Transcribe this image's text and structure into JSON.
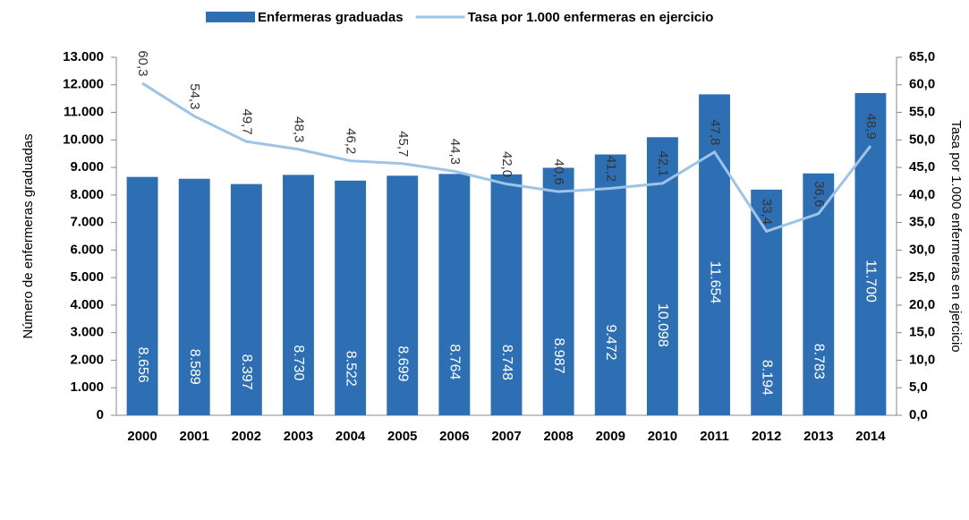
{
  "chart_data": {
    "type": "bar",
    "categories": [
      "2000",
      "2001",
      "2002",
      "2003",
      "2004",
      "2005",
      "2006",
      "2007",
      "2008",
      "2009",
      "2010",
      "2011",
      "2012",
      "2013",
      "2014"
    ],
    "series": [
      {
        "name": "Enfermeras graduadas",
        "type": "bar",
        "color": "#2e6fb4",
        "values": [
          8656,
          8589,
          8397,
          8730,
          8522,
          8699,
          8764,
          8748,
          8987,
          9472,
          10098,
          11654,
          8194,
          8783,
          11700
        ],
        "value_labels": [
          "8.656",
          "8.589",
          "8.397",
          "8.730",
          "8.522",
          "8.699",
          "8.764",
          "8.748",
          "8.987",
          "9.472",
          "10.098",
          "11.654",
          "8.194",
          "8.783",
          "11.700"
        ]
      },
      {
        "name": "Tasa por 1.000 enfermeras en ejercicio",
        "type": "line",
        "axis": "y2",
        "color": "#9dc3e6",
        "values": [
          60.3,
          54.3,
          49.7,
          48.3,
          46.2,
          45.7,
          44.3,
          42.0,
          40.6,
          41.2,
          42.1,
          47.8,
          33.4,
          36.6,
          48.9
        ],
        "value_labels": [
          "60,3",
          "54,3",
          "49,7",
          "48,3",
          "46,2",
          "45,7",
          "44,3",
          "42,0",
          "40,6",
          "41,2",
          "42,1",
          "47,8",
          "33,4",
          "36,6",
          "48,9"
        ]
      }
    ],
    "ylabel": "Número de enfermeras graduadas",
    "y2label": "Tasa por 1.000 enfermeras en ejercicio",
    "ylim": [
      0,
      13000
    ],
    "yticks": [
      0,
      {
        "value": 1000,
        "label": "1.000"
      },
      {
        "value": 2000,
        "label": "2.000"
      },
      {
        "value": 3000,
        "label": "3.000"
      },
      {
        "value": 4000,
        "label": "4.000"
      },
      {
        "value": 5000,
        "label": "5.000"
      },
      {
        "value": 6000,
        "label": "6.000"
      },
      {
        "value": 7000,
        "label": "7.000"
      },
      {
        "value": 8000,
        "label": "8.000"
      },
      {
        "value": 9000,
        "label": "9.000"
      },
      {
        "value": 10000,
        "label": "10.000"
      },
      {
        "value": 11000,
        "label": "11.000"
      },
      {
        "value": 12000,
        "label": "12.000"
      },
      {
        "value": 13000,
        "label": "13.000"
      }
    ],
    "y2lim": [
      0,
      65
    ],
    "y2ticks": [
      {
        "value": 0,
        "label": "0,0"
      },
      {
        "value": 5,
        "label": "5,0"
      },
      {
        "value": 10,
        "label": "10,0"
      },
      {
        "value": 15,
        "label": "15,0"
      },
      {
        "value": 20,
        "label": "20,0"
      },
      {
        "value": 25,
        "label": "25,0"
      },
      {
        "value": 30,
        "label": "30,0"
      },
      {
        "value": 35,
        "label": "35,0"
      },
      {
        "value": 40,
        "label": "40,0"
      },
      {
        "value": 45,
        "label": "45,0"
      },
      {
        "value": 50,
        "label": "50,0"
      },
      {
        "value": 55,
        "label": "55,0"
      },
      {
        "value": 60,
        "label": "60,0"
      },
      {
        "value": 65,
        "label": "65,0"
      }
    ],
    "legend": "top"
  }
}
